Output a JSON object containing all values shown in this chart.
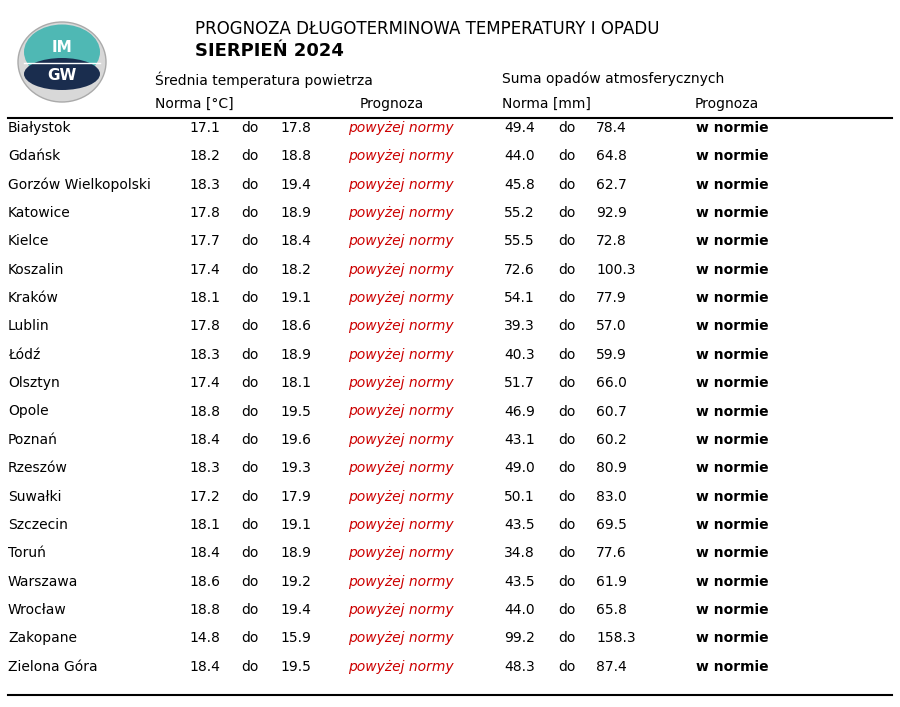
{
  "title_line1": "PROGNOZA DŁUGOTERMINOWA TEMPERATURY I OPADU",
  "title_line2": "SIERPIEŃ 2024",
  "header_temp": "Średnia temperatura powietrza",
  "header_precip": "Suma opadów atmosferycznych",
  "col_norma_temp": "Norma [°C]",
  "col_prognoza": "Prognoza",
  "col_norma_precip": "Norma [mm]",
  "col_prognoza2": "Prognoza",
  "cities": [
    "Białystok",
    "Gdańsk",
    "Gorzów Wielkopolski",
    "Katowice",
    "Kielce",
    "Koszalin",
    "Kraków",
    "Lublin",
    "Łódź",
    "Olsztyn",
    "Opole",
    "Poznań",
    "Rzeszów",
    "Suwałki",
    "Szczecin",
    "Toruń",
    "Warszawa",
    "Wrocław",
    "Zakopane",
    "Zielona Góra"
  ],
  "temp_norma_low": [
    17.1,
    18.2,
    18.3,
    17.8,
    17.7,
    17.4,
    18.1,
    17.8,
    18.3,
    17.4,
    18.8,
    18.4,
    18.3,
    17.2,
    18.1,
    18.4,
    18.6,
    18.8,
    14.8,
    18.4
  ],
  "temp_norma_high": [
    17.8,
    18.8,
    19.4,
    18.9,
    18.4,
    18.2,
    19.1,
    18.6,
    18.9,
    18.1,
    19.5,
    19.6,
    19.3,
    17.9,
    19.1,
    18.9,
    19.2,
    19.4,
    15.9,
    19.5
  ],
  "temp_prognoza": "powyżej normy",
  "precip_norma_low": [
    49.4,
    44.0,
    45.8,
    55.2,
    55.5,
    72.6,
    54.1,
    39.3,
    40.3,
    51.7,
    46.9,
    43.1,
    49.0,
    50.1,
    43.5,
    34.8,
    43.5,
    44.0,
    99.2,
    48.3
  ],
  "precip_norma_high": [
    78.4,
    64.8,
    62.7,
    92.9,
    72.8,
    100.3,
    77.9,
    57.0,
    59.9,
    66.0,
    60.7,
    60.2,
    80.9,
    83.0,
    69.5,
    77.6,
    61.9,
    65.8,
    158.3,
    87.4
  ],
  "precip_prognoza": "w normie",
  "red_color": "#cc0000",
  "bg_color": "#ffffff",
  "fig_width": 9.0,
  "fig_height": 7.07,
  "dpi": 100
}
